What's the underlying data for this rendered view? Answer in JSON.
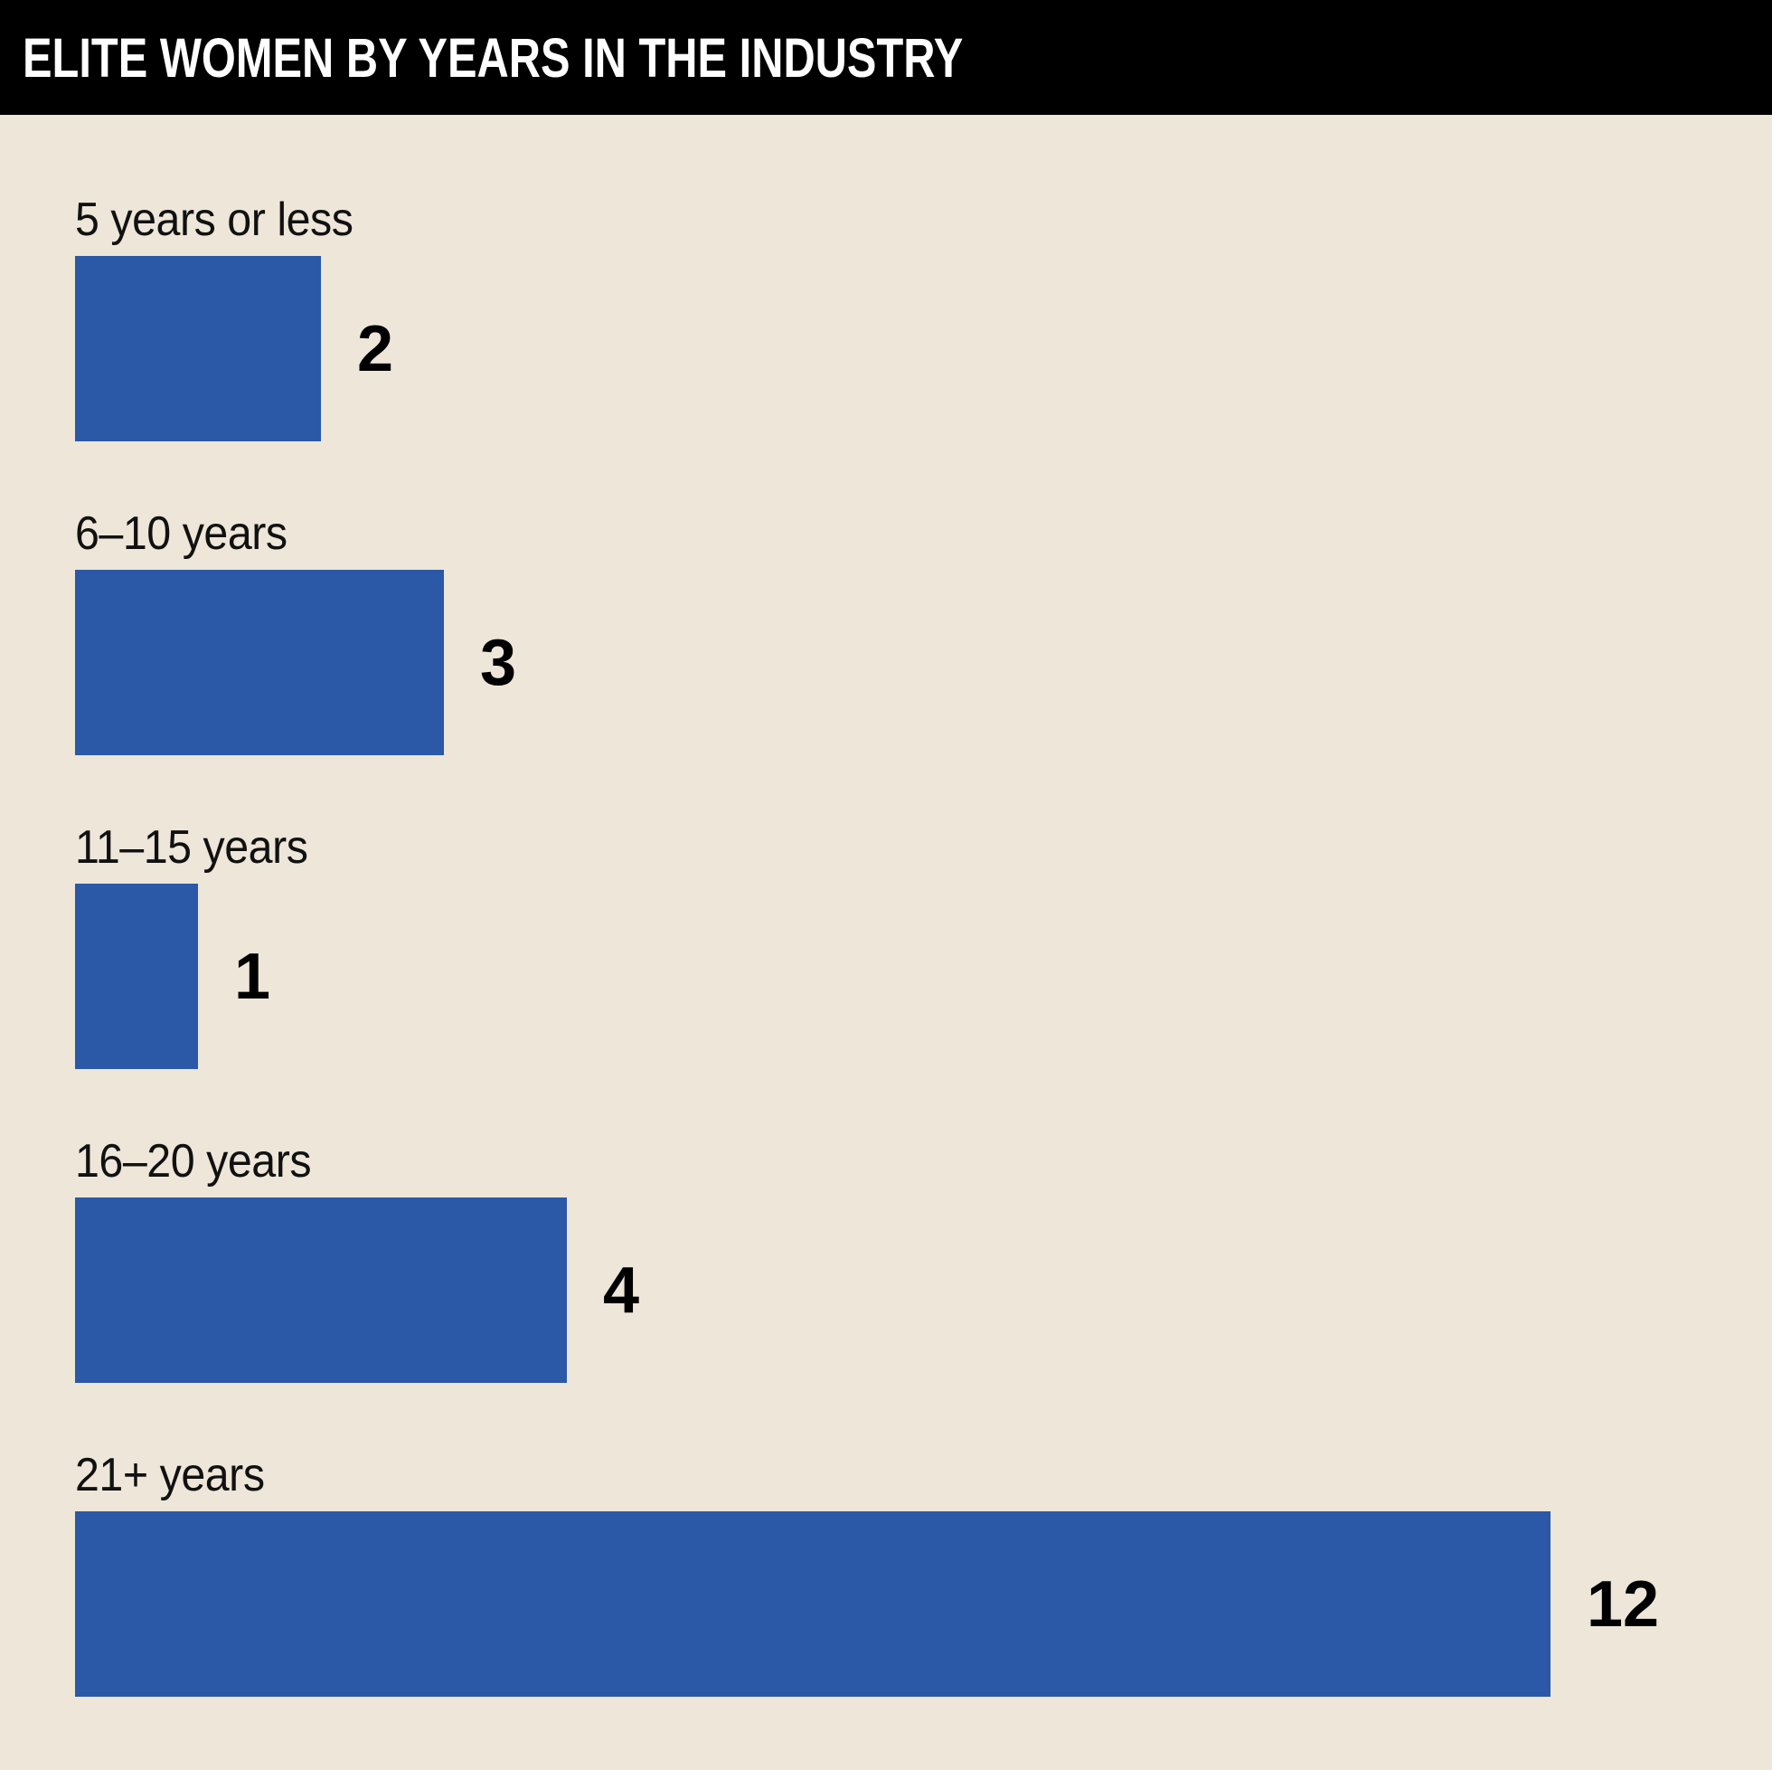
{
  "header": {
    "title": "ELITE WOMEN BY YEARS IN THE INDUSTRY"
  },
  "chart_data": {
    "type": "bar",
    "orientation": "horizontal",
    "title": "ELITE WOMEN BY YEARS IN THE INDUSTRY",
    "categories": [
      "5 years or less",
      "6–10 years",
      "11–15 years",
      "16–20 years",
      "21+ years"
    ],
    "values": [
      2,
      3,
      1,
      4,
      12
    ],
    "value_labels": [
      "2",
      "3",
      "1",
      "4",
      "12"
    ],
    "xlim": [
      0,
      12
    ],
    "grid": false,
    "legend": false,
    "axis_ticks": false,
    "bar_color": "#2B58A7",
    "background_color": "#EDE6D9",
    "header_bg_color": "#000000",
    "header_text_color": "#FFFFFF",
    "label_color": "#111111",
    "value_color": "#000000"
  }
}
